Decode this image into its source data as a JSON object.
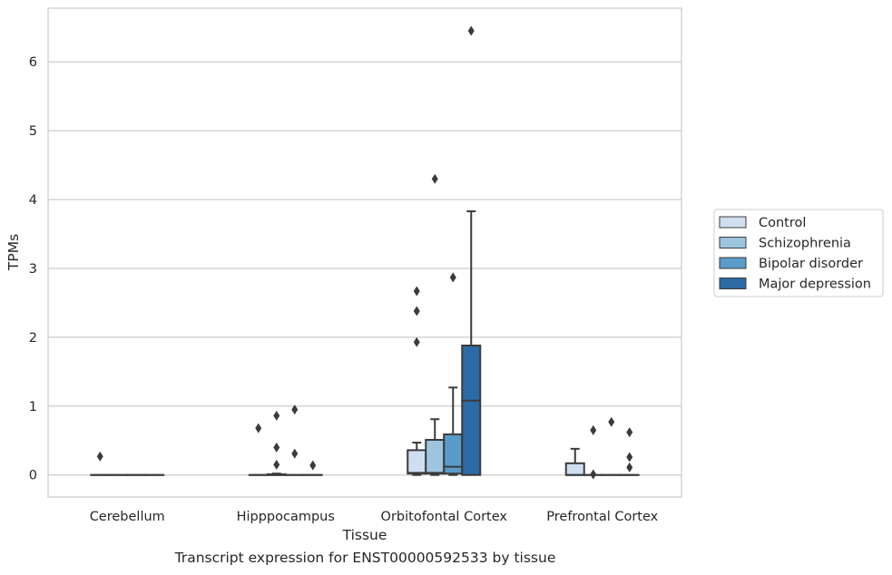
{
  "chart_data": {
    "type": "box",
    "title": "",
    "xlabel": "Tissue",
    "ylabel": "TPMs",
    "caption": "Transcript expression for ENST00000592533 by tissue",
    "ylim": [
      -0.32,
      6.78
    ],
    "yticks": [
      "0",
      "1",
      "2",
      "3",
      "4",
      "5",
      "6"
    ],
    "grid": "horizontal",
    "legend_position": "right",
    "categories": [
      "Cerebellum",
      "Hipppocampus",
      "Orbitofontal Cortex",
      "Prefrontal Cortex"
    ],
    "series": [
      {
        "name": "Control",
        "color": "#cfdff0",
        "boxes": [
          {
            "q1": 0,
            "median": 0,
            "q3": 0,
            "whislo": 0,
            "whishi": 0,
            "fliers": [
              0.27
            ]
          },
          {
            "q1": 0,
            "median": 0,
            "q3": 0,
            "whislo": 0,
            "whishi": 0,
            "fliers": [
              0.68
            ]
          },
          {
            "q1": 0.02,
            "median": 0.03,
            "q3": 0.36,
            "whislo": 0,
            "whishi": 0.47,
            "fliers": [
              1.93,
              2.38,
              2.67
            ]
          },
          {
            "q1": 0,
            "median": 0,
            "q3": 0.17,
            "whislo": 0,
            "whishi": 0.38,
            "fliers": []
          }
        ]
      },
      {
        "name": "Schizophrenia",
        "color": "#9dc5e0",
        "boxes": [
          {
            "q1": 0,
            "median": 0,
            "q3": 0,
            "whislo": 0,
            "whishi": 0,
            "fliers": []
          },
          {
            "q1": 0,
            "median": 0,
            "q3": 0.01,
            "whislo": 0,
            "whishi": 0.02,
            "fliers": [
              0.15,
              0.4,
              0.86
            ]
          },
          {
            "q1": 0.02,
            "median": 0.03,
            "q3": 0.51,
            "whislo": 0,
            "whishi": 0.81,
            "fliers": [
              4.3
            ]
          },
          {
            "q1": 0,
            "median": 0,
            "q3": 0,
            "whislo": 0,
            "whishi": 0,
            "fliers": [
              0.01,
              0.65
            ]
          }
        ]
      },
      {
        "name": "Bipolar disorder",
        "color": "#5a9bc9",
        "boxes": [
          {
            "q1": 0,
            "median": 0,
            "q3": 0,
            "whislo": 0,
            "whishi": 0,
            "fliers": []
          },
          {
            "q1": 0,
            "median": 0,
            "q3": 0,
            "whislo": 0,
            "whishi": 0,
            "fliers": [
              0.31,
              0.95
            ]
          },
          {
            "q1": 0.02,
            "median": 0.12,
            "q3": 0.59,
            "whislo": 0,
            "whishi": 1.27,
            "fliers": [
              2.87
            ]
          },
          {
            "q1": 0,
            "median": 0,
            "q3": 0,
            "whislo": 0,
            "whishi": 0,
            "fliers": [
              0.77
            ]
          }
        ]
      },
      {
        "name": "Major depression",
        "color": "#2b6aa5",
        "boxes": [
          {
            "q1": 0,
            "median": 0,
            "q3": 0,
            "whislo": 0,
            "whishi": 0,
            "fliers": []
          },
          {
            "q1": 0,
            "median": 0,
            "q3": 0,
            "whislo": 0,
            "whishi": 0,
            "fliers": [
              0.14
            ]
          },
          {
            "q1": 0,
            "median": 1.08,
            "q3": 1.88,
            "whislo": 0,
            "whishi": 3.83,
            "fliers": [
              6.45
            ]
          },
          {
            "q1": 0,
            "median": 0,
            "q3": 0,
            "whislo": 0,
            "whishi": 0,
            "fliers": [
              0.11,
              0.26,
              0.62
            ]
          }
        ]
      }
    ]
  }
}
